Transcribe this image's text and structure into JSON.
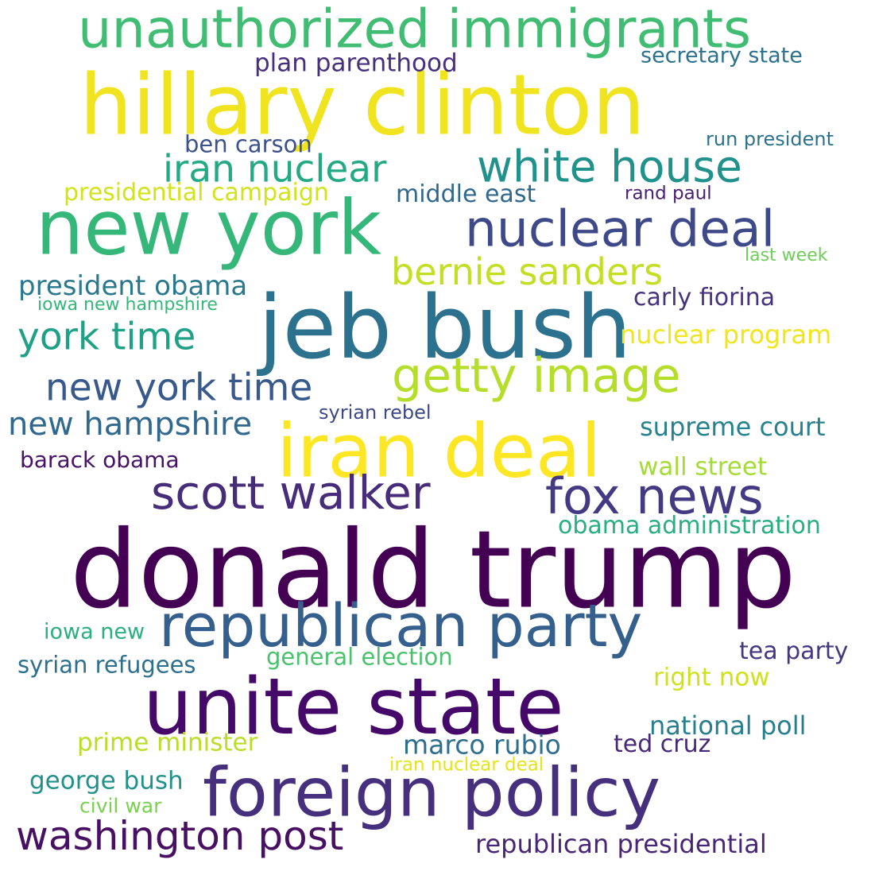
{
  "words": [
    {
      "text": "unauthorized immigrants",
      "color": "#40bd72"
    },
    {
      "text": "hillary clinton",
      "color": "#f0e420"
    },
    {
      "text": "secretary state",
      "color": "#2c728e"
    },
    {
      "text": "plan parenthood",
      "color": "#472f7d"
    },
    {
      "text": "white house",
      "color": "#21918c"
    },
    {
      "text": "iran nuclear",
      "color": "#23a983"
    },
    {
      "text": "ben carson",
      "color": "#3b528b"
    },
    {
      "text": "run president",
      "color": "#2c728e"
    },
    {
      "text": "new york",
      "color": "#35b779"
    },
    {
      "text": "presidential campaign",
      "color": "#d2e21b"
    },
    {
      "text": "middle east",
      "color": "#31688e"
    },
    {
      "text": "rand paul",
      "color": "#482173"
    },
    {
      "text": "nuclear deal",
      "color": "#3e4989"
    },
    {
      "text": "last week",
      "color": "#6ece58"
    },
    {
      "text": "bernie sanders",
      "color": "#c2df23"
    },
    {
      "text": "president obama",
      "color": "#2a788e"
    },
    {
      "text": "iowa new hampshire",
      "color": "#35b779"
    },
    {
      "text": "jeb bush",
      "color": "#2c728e"
    },
    {
      "text": "carly fiorina",
      "color": "#46327e"
    },
    {
      "text": "york time",
      "color": "#1fa187"
    },
    {
      "text": "nuclear program",
      "color": "#f1e51d"
    },
    {
      "text": "getty image",
      "color": "#b5de2b"
    },
    {
      "text": "new york time",
      "color": "#38598c"
    },
    {
      "text": "syrian rebel",
      "color": "#3e4989"
    },
    {
      "text": "new hampshire",
      "color": "#31688e"
    },
    {
      "text": "iran deal",
      "color": "#fde725"
    },
    {
      "text": "supreme court",
      "color": "#26828e"
    },
    {
      "text": "barack obama",
      "color": "#471365"
    },
    {
      "text": "wall street",
      "color": "#a5db36"
    },
    {
      "text": "scott walker",
      "color": "#472c7a"
    },
    {
      "text": "fox news",
      "color": "#443a83"
    },
    {
      "text": "obama administration",
      "color": "#29af7f"
    },
    {
      "text": "donald trump",
      "color": "#440154"
    },
    {
      "text": "republican party",
      "color": "#355f8d"
    },
    {
      "text": "iowa new",
      "color": "#2ab07f"
    },
    {
      "text": "tea party",
      "color": "#453781"
    },
    {
      "text": "syrian refugees",
      "color": "#2d708e"
    },
    {
      "text": "general election",
      "color": "#4ac16d"
    },
    {
      "text": "right now",
      "color": "#d0e11c"
    },
    {
      "text": "unite state",
      "color": "#450a69"
    },
    {
      "text": "national poll",
      "color": "#277f8e"
    },
    {
      "text": "prime minister",
      "color": "#bade28"
    },
    {
      "text": "marco rubio",
      "color": "#2e6e8e"
    },
    {
      "text": "ted cruz",
      "color": "#482878"
    },
    {
      "text": "iran nuclear deal",
      "color": "#e5e419"
    },
    {
      "text": "george bush",
      "color": "#21918c"
    },
    {
      "text": "foreign policy",
      "color": "#46307e"
    },
    {
      "text": "civil war",
      "color": "#7ad151"
    },
    {
      "text": "washington post",
      "color": "#471063"
    },
    {
      "text": "republican presidential",
      "color": "#482576"
    }
  ]
}
